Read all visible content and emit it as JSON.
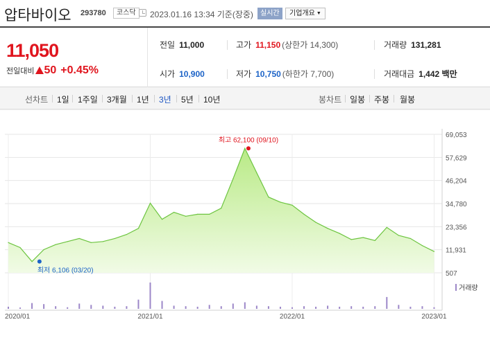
{
  "header": {
    "stock_name": "압타바이오",
    "stock_code": "293780",
    "market": "코스닥",
    "timestamp": "2023.01.16 13:34 기준(장중)",
    "realtime": "실시간",
    "overview": "기업개요"
  },
  "price": {
    "current": "11,050",
    "change_label": "전일대비",
    "change_value": "50",
    "change_pct": "+0.45%"
  },
  "stats": {
    "prev_close": {
      "label": "전일",
      "value": "11,000"
    },
    "high": {
      "label": "고가",
      "value": "11,150",
      "sub": "(상한가 14,300)"
    },
    "volume": {
      "label": "거래량",
      "value": "131,281"
    },
    "open": {
      "label": "시가",
      "value": "10,900"
    },
    "low": {
      "label": "저가",
      "value": "10,750",
      "sub": "(하한가 7,700)"
    },
    "amount": {
      "label": "거래대금",
      "value": "1,442",
      "unit": "백만"
    }
  },
  "period_bar": {
    "line_label": "선차트",
    "periods": [
      "1일",
      "1주일",
      "3개월",
      "1년",
      "3년",
      "5년",
      "10년"
    ],
    "active_period": "3년",
    "candle_label": "봉차트",
    "candles": [
      "일봉",
      "주봉",
      "월봉"
    ]
  },
  "colors": {
    "up": "#e0151e",
    "down": "#1c63c7",
    "line": "#6cc43f",
    "area": "#c9f0a2",
    "volume": "#9c87c8",
    "max_marker": "#e0151e",
    "min_marker": "#1c63c7"
  },
  "chart_data": {
    "type": "area",
    "title": "",
    "xlabel": "",
    "ylabel": "",
    "x_ticks": [
      "2020/01",
      "2021/01",
      "2022/01",
      "2023/01"
    ],
    "y_ticks": [
      507,
      11931,
      23356,
      34780,
      46204,
      57629,
      69053
    ],
    "ylim": [
      507,
      69053
    ],
    "grid": true,
    "annotations": {
      "max": {
        "label": "최고 62,100 (09/10)",
        "date": "2021/09/10",
        "value": 62100
      },
      "min": {
        "label": "최저 6,106 (03/20)",
        "date": "2020/03/20",
        "value": 6106
      }
    },
    "volume_legend": "거래량",
    "series": [
      {
        "x": [
          "2020/01",
          "2020/02",
          "2020/03",
          "2020/04",
          "2020/05",
          "2020/06",
          "2020/07",
          "2020/08",
          "2020/09",
          "2020/10",
          "2020/11",
          "2020/12",
          "2021/01",
          "2021/02",
          "2021/03",
          "2021/04",
          "2021/05",
          "2021/06",
          "2021/07",
          "2021/08",
          "2021/09",
          "2021/10",
          "2021/11",
          "2021/12",
          "2022/01",
          "2022/02",
          "2022/03",
          "2022/04",
          "2022/05",
          "2022/06",
          "2022/07",
          "2022/08",
          "2022/09",
          "2022/10",
          "2022/11",
          "2022/12",
          "2023/01"
        ],
        "values": [
          15500,
          13000,
          6106,
          12000,
          14500,
          16000,
          17500,
          15500,
          16000,
          17500,
          19500,
          22500,
          35000,
          27000,
          30500,
          28500,
          29500,
          29500,
          32500,
          47000,
          62100,
          50000,
          38000,
          35500,
          34000,
          29500,
          25500,
          22500,
          20000,
          17000,
          18000,
          16500,
          23000,
          19000,
          17500,
          14000,
          11050
        ]
      }
    ],
    "volume": {
      "note": "relative daily volume spikes",
      "max_relative_date": "2021/01",
      "values": [
        0.08,
        0.05,
        0.22,
        0.18,
        0.1,
        0.06,
        0.2,
        0.15,
        0.12,
        0.08,
        0.1,
        0.35,
        1.0,
        0.3,
        0.12,
        0.1,
        0.08,
        0.15,
        0.1,
        0.2,
        0.25,
        0.12,
        0.1,
        0.08,
        0.06,
        0.1,
        0.08,
        0.12,
        0.08,
        0.1,
        0.08,
        0.1,
        0.45,
        0.15,
        0.08,
        0.1,
        0.06
      ]
    }
  }
}
